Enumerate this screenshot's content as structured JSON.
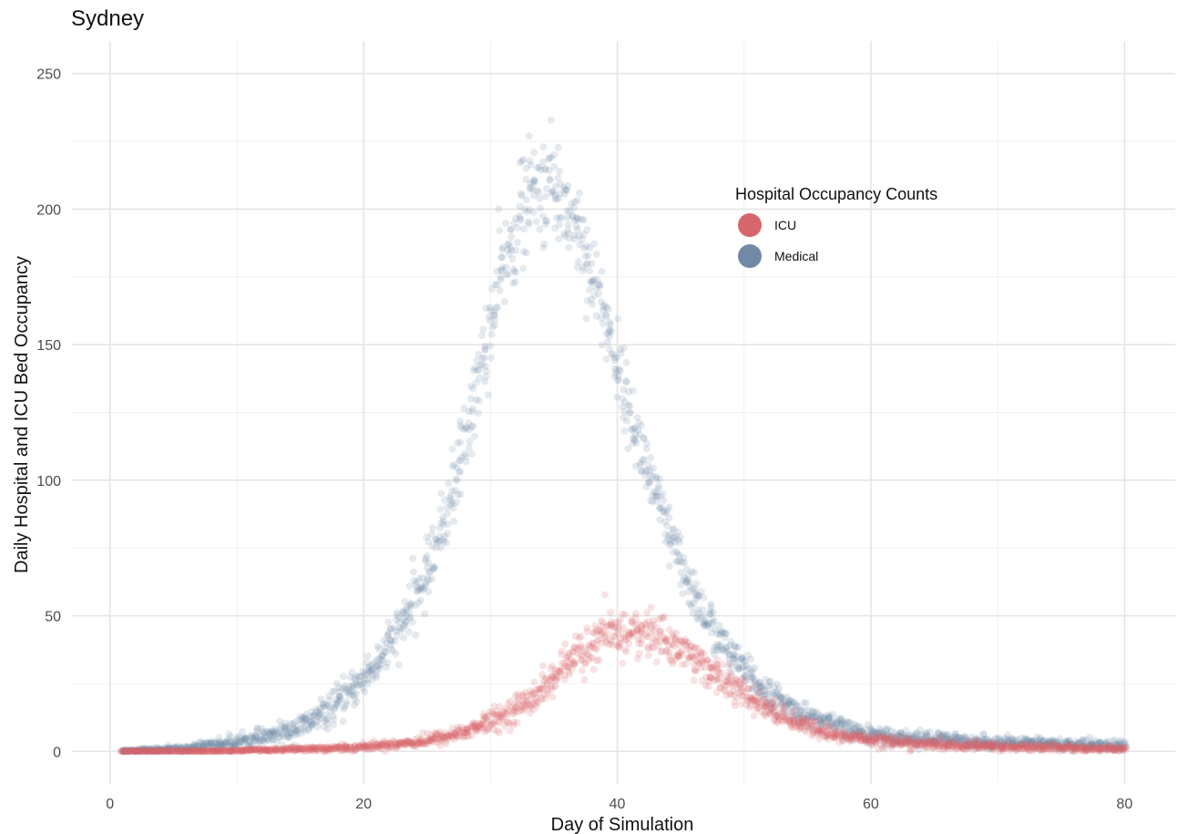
{
  "chart_data": {
    "type": "scatter",
    "title": "Sydney",
    "xlabel": "Day of Simulation",
    "ylabel": "Daily Hospital and ICU Bed Occupancy",
    "xlim": [
      -3,
      84
    ],
    "ylim": [
      -12,
      262
    ],
    "x_ticks": [
      0,
      20,
      40,
      60,
      80
    ],
    "y_ticks": [
      0,
      50,
      100,
      150,
      200,
      250
    ],
    "grid": true,
    "legend": {
      "title": "Hospital Occupancy Counts",
      "placement": "upper-center-right"
    },
    "x": [
      1,
      3,
      5,
      7,
      9,
      11,
      13,
      15,
      17,
      19,
      21,
      23,
      25,
      27,
      29,
      31,
      33,
      35,
      37,
      39,
      41,
      43,
      45,
      47,
      49,
      51,
      53,
      55,
      57,
      59,
      61,
      63,
      65,
      67,
      69,
      71,
      73,
      75,
      77,
      79,
      80
    ],
    "series": [
      {
        "name": "Medical",
        "color": "#7189a6",
        "opacity": 0.18,
        "values": [
          0,
          0.5,
          1,
          2,
          3,
          4,
          6,
          9,
          14,
          22,
          32,
          46,
          66,
          95,
          135,
          178,
          205,
          208,
          192,
          160,
          125,
          94,
          68,
          49,
          35,
          25,
          18,
          13,
          10,
          7,
          6,
          5,
          4.5,
          4,
          3.5,
          3,
          3,
          2.5,
          2.5,
          2,
          2
        ],
        "spread": [
          0.5,
          0.8,
          1,
          1.5,
          2,
          2.5,
          3,
          4,
          5,
          6,
          7,
          8,
          10,
          12,
          14,
          16,
          18,
          18,
          16,
          14,
          12,
          10,
          9,
          8,
          6,
          5,
          4,
          3.5,
          3,
          3,
          2.5,
          2.5,
          2.5,
          2,
          2,
          2,
          2,
          2,
          2,
          2,
          2
        ]
      },
      {
        "name": "ICU",
        "color": "#d7666b",
        "opacity": 0.18,
        "values": [
          0,
          0,
          0,
          0,
          0,
          0.5,
          0.5,
          1,
          1,
          1.5,
          2,
          3,
          4,
          6,
          9,
          13,
          19,
          27,
          36,
          42,
          44,
          43,
          38,
          31,
          24,
          18,
          13,
          9,
          6,
          5,
          4,
          3,
          2.5,
          2,
          2,
          1.5,
          1.5,
          1.5,
          1,
          1,
          1
        ],
        "spread": [
          0.3,
          0.3,
          0.3,
          0.3,
          0.4,
          0.5,
          0.5,
          0.8,
          1,
          1,
          1.2,
          1.5,
          2,
          2.5,
          3,
          4,
          5,
          6,
          7,
          8,
          8,
          8,
          7,
          6,
          5,
          4,
          3.5,
          3,
          2.5,
          2,
          2,
          1.8,
          1.5,
          1.5,
          1.5,
          1.2,
          1.2,
          1.2,
          1,
          1,
          1
        ]
      }
    ]
  }
}
